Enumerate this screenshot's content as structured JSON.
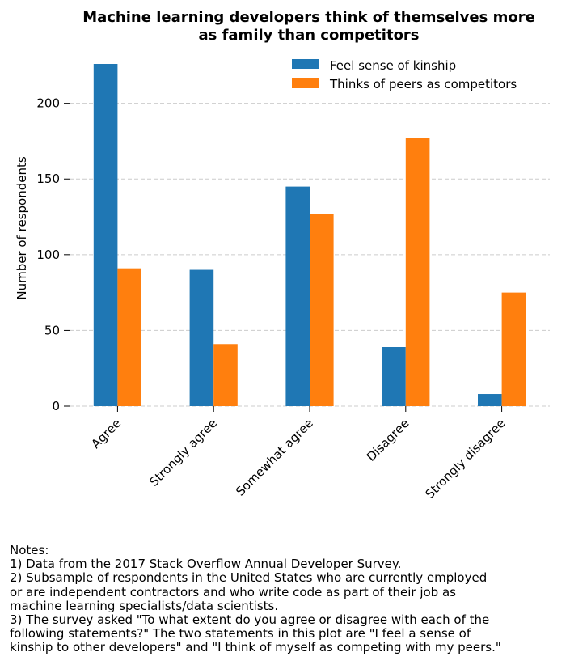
{
  "chart_data": {
    "type": "bar",
    "title_lines": [
      "Machine learning developers think of themselves more",
      "as family than competitors"
    ],
    "xlabel": "",
    "ylabel": "Number of respondents",
    "categories": [
      "Agree",
      "Strongly agree",
      "Somewhat agree",
      "Disagree",
      "Strongly disagree"
    ],
    "series": [
      {
        "name": "Feel sense of kinship",
        "color": "#1f77b4",
        "values": [
          226,
          90,
          145,
          39,
          8
        ]
      },
      {
        "name": "Thinks of peers as competitors",
        "color": "#ff7f0e",
        "values": [
          91,
          41,
          127,
          177,
          75
        ]
      }
    ],
    "yticks": [
      0,
      50,
      100,
      150,
      200
    ],
    "ylim": [
      0,
      226
    ],
    "grid": "y-dashed",
    "legend_position": "top-right"
  },
  "notes": [
    "Notes:",
    "1) Data from the 2017 Stack Overflow Annual Developer Survey.",
    "2) Subsample of respondents in the United States who are currently employed",
    "or are independent contractors and who write code as part of their job as",
    "machine learning specialists/data scientists.",
    "3) The survey asked \"To what extent do you agree or disagree with each of the",
    "following statements?\" The two statements in this plot are \"I feel a sense of",
    "kinship to other developers\" and \"I think of myself as competing with my peers.\""
  ]
}
